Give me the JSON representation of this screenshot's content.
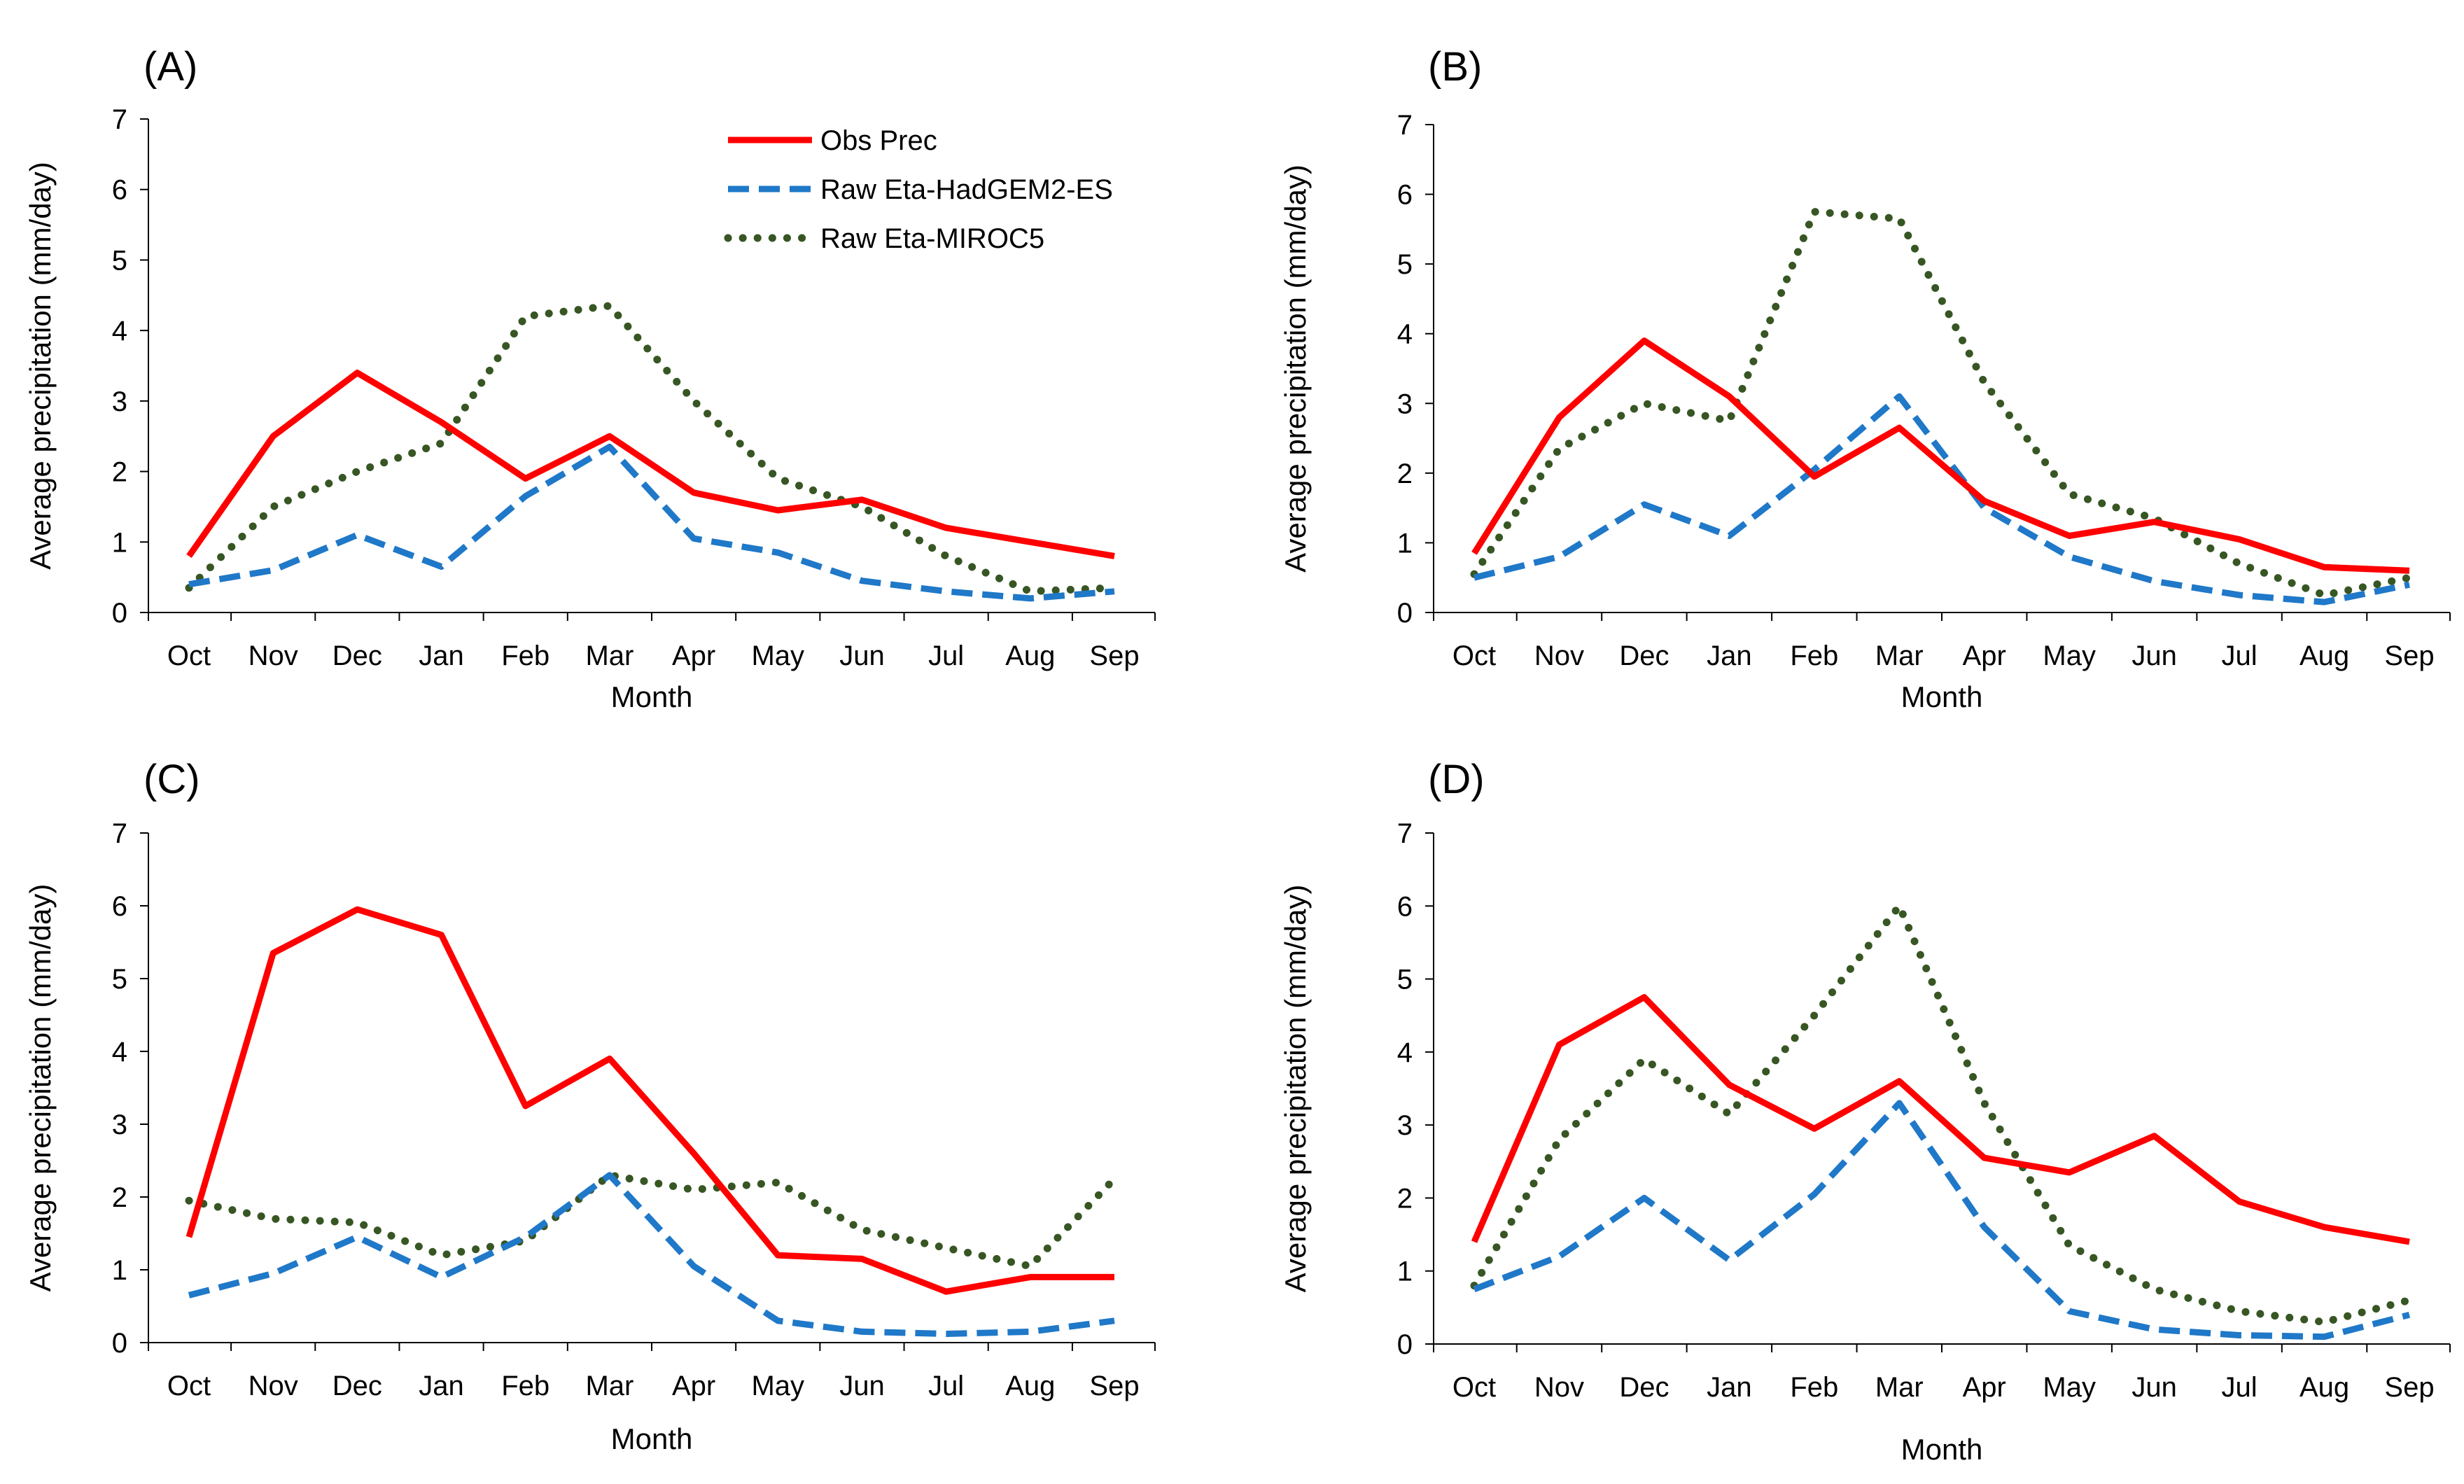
{
  "colors": {
    "obs": "#ff0000",
    "hadgem": "#1f78c8",
    "miroc": "#375623"
  },
  "chart_data": [
    {
      "type": "line",
      "panel_label": "(A)",
      "categories": [
        "Oct",
        "Nov",
        "Dec",
        "Jan",
        "Feb",
        "Mar",
        "Apr",
        "May",
        "Jun",
        "Jul",
        "Aug",
        "Sep"
      ],
      "yticks": [
        "0",
        "1",
        "2",
        "3",
        "4",
        "5",
        "6",
        "7"
      ],
      "ylim": [
        0,
        7
      ],
      "xlabel": "Month",
      "ylabel": "Average precipitation (mm/day)",
      "legend": true,
      "legend_position": "top-center",
      "series": [
        {
          "name": "Obs Prec",
          "style": "solid",
          "values": [
            0.8,
            2.5,
            3.4,
            2.7,
            1.9,
            2.5,
            1.7,
            1.45,
            1.6,
            1.2,
            1.0,
            0.8
          ]
        },
        {
          "name": "Raw Eta-HadGEM2-ES",
          "style": "dashed",
          "values": [
            0.4,
            0.6,
            1.1,
            0.65,
            1.65,
            2.35,
            1.05,
            0.85,
            0.45,
            0.3,
            0.2,
            0.3
          ]
        },
        {
          "name": "Raw Eta-MIROC5",
          "style": "dotted",
          "values": [
            0.35,
            1.5,
            2.0,
            2.4,
            4.2,
            4.35,
            3.0,
            1.9,
            1.5,
            0.8,
            0.3,
            0.35
          ]
        }
      ]
    },
    {
      "type": "line",
      "panel_label": "(B)",
      "categories": [
        "Oct",
        "Nov",
        "Dec",
        "Jan",
        "Feb",
        "Mar",
        "Apr",
        "May",
        "Jun",
        "Jul",
        "Aug",
        "Sep"
      ],
      "yticks": [
        "0",
        "1",
        "2",
        "3",
        "4",
        "5",
        "6",
        "7"
      ],
      "ylim": [
        0,
        7
      ],
      "xlabel": "Month",
      "ylabel": "Average precipitation (mm/day)",
      "legend": false,
      "series": [
        {
          "name": "Obs Prec",
          "style": "solid",
          "values": [
            0.85,
            2.8,
            3.9,
            3.1,
            1.95,
            2.65,
            1.6,
            1.1,
            1.3,
            1.05,
            0.65,
            0.6
          ]
        },
        {
          "name": "Raw Eta-HadGEM2-ES",
          "style": "dashed",
          "values": [
            0.5,
            0.8,
            1.55,
            1.1,
            2.05,
            3.1,
            1.5,
            0.8,
            0.45,
            0.25,
            0.15,
            0.4
          ]
        },
        {
          "name": "Raw Eta-MIROC5",
          "style": "dotted",
          "values": [
            0.55,
            2.35,
            3.0,
            2.75,
            5.75,
            5.65,
            3.3,
            1.7,
            1.35,
            0.7,
            0.25,
            0.5
          ]
        }
      ]
    },
    {
      "type": "line",
      "panel_label": "(C)",
      "categories": [
        "Oct",
        "Nov",
        "Dec",
        "Jan",
        "Feb",
        "Mar",
        "Apr",
        "May",
        "Jun",
        "Jul",
        "Aug",
        "Sep"
      ],
      "yticks": [
        "0",
        "1",
        "2",
        "3",
        "4",
        "5",
        "6",
        "7"
      ],
      "ylim": [
        0,
        7
      ],
      "xlabel": "Month",
      "ylabel": "Average precipitation (mm/day)",
      "legend": false,
      "series": [
        {
          "name": "Obs Prec",
          "style": "solid",
          "values": [
            1.45,
            5.35,
            5.95,
            5.6,
            3.25,
            3.9,
            2.6,
            1.2,
            1.15,
            0.7,
            0.9,
            0.9
          ]
        },
        {
          "name": "Raw Eta-HadGEM2-ES",
          "style": "dashed",
          "values": [
            0.65,
            0.95,
            1.45,
            0.9,
            1.45,
            2.3,
            1.05,
            0.3,
            0.15,
            0.12,
            0.15,
            0.3
          ]
        },
        {
          "name": "Raw Eta-MIROC5",
          "style": "dotted",
          "values": [
            1.95,
            1.7,
            1.65,
            1.2,
            1.4,
            2.3,
            2.1,
            2.2,
            1.55,
            1.3,
            1.05,
            2.25
          ]
        }
      ]
    },
    {
      "type": "line",
      "panel_label": "(D)",
      "categories": [
        "Oct",
        "Nov",
        "Dec",
        "Jan",
        "Feb",
        "Mar",
        "Apr",
        "May",
        "Jun",
        "Jul",
        "Aug",
        "Sep"
      ],
      "yticks": [
        "0",
        "1",
        "2",
        "3",
        "4",
        "5",
        "6",
        "7"
      ],
      "ylim": [
        0,
        7
      ],
      "xlabel": "Month",
      "ylabel": "Average precipitation (mm/day)",
      "legend": false,
      "series": [
        {
          "name": "Obs Prec",
          "style": "solid",
          "values": [
            1.4,
            4.1,
            4.75,
            3.55,
            2.95,
            3.6,
            2.55,
            2.35,
            2.85,
            1.95,
            1.6,
            1.4
          ]
        },
        {
          "name": "Raw Eta-HadGEM2-ES",
          "style": "dashed",
          "values": [
            0.75,
            1.2,
            2.0,
            1.15,
            2.05,
            3.3,
            1.6,
            0.45,
            0.2,
            0.12,
            0.1,
            0.4
          ]
        },
        {
          "name": "Raw Eta-MIROC5",
          "style": "dotted",
          "values": [
            0.8,
            2.8,
            3.9,
            3.15,
            4.5,
            6.0,
            3.3,
            1.35,
            0.75,
            0.45,
            0.3,
            0.6
          ]
        }
      ]
    }
  ]
}
